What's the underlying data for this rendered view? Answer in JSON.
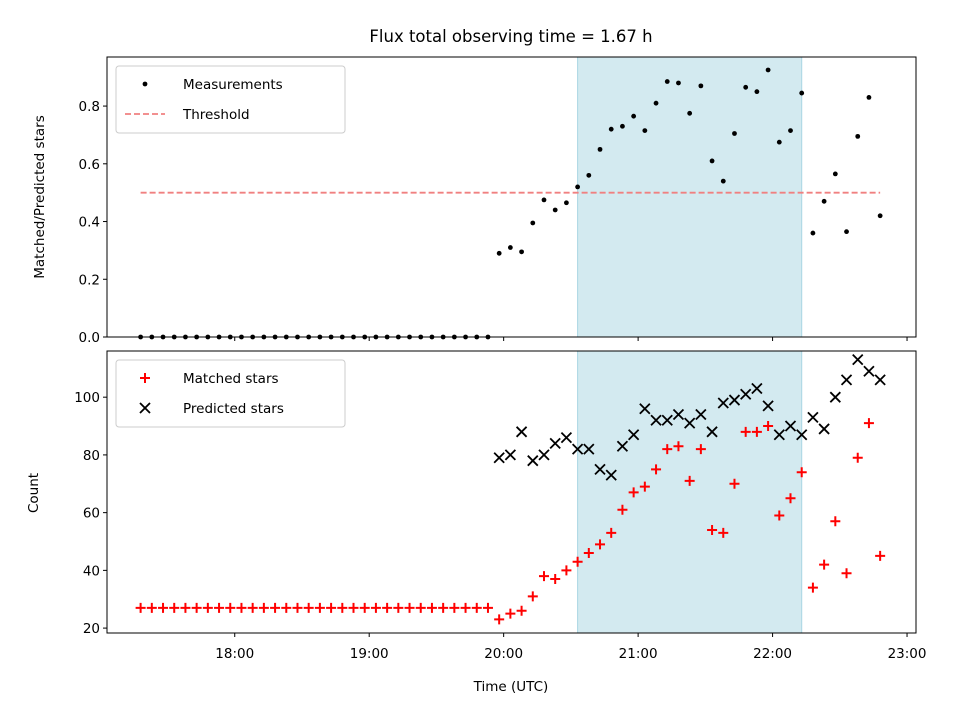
{
  "chart_data": [
    {
      "type": "scatter",
      "title": "Flux total observing time = 1.67 h",
      "xlabel": "",
      "ylabel": "Matched/Predicted stars",
      "ylim": [
        0,
        0.97
      ],
      "yticks": [
        0.0,
        0.2,
        0.4,
        0.6,
        0.8
      ],
      "ytick_labels": [
        "0.0",
        "0.2",
        "0.4",
        "0.6",
        "0.8"
      ],
      "xlim": [
        "17:03",
        "23:04"
      ],
      "legend_position": "top-left",
      "shaded_interval": [
        "20:33",
        "22:13"
      ],
      "shade_color": "#d3eaf0",
      "series": [
        {
          "name": "Measurements",
          "kind": "points",
          "color": "#000000",
          "x": [
            "17:18",
            "17:23",
            "17:28",
            "17:33",
            "17:38",
            "17:43",
            "17:48",
            "17:53",
            "17:58",
            "18:03",
            "18:08",
            "18:13",
            "18:18",
            "18:23",
            "18:28",
            "18:33",
            "18:38",
            "18:43",
            "18:48",
            "18:53",
            "18:58",
            "19:03",
            "19:08",
            "19:13",
            "19:18",
            "19:23",
            "19:28",
            "19:33",
            "19:38",
            "19:43",
            "19:48",
            "19:53",
            "19:58",
            "20:03",
            "20:08",
            "20:13",
            "20:18",
            "20:23",
            "20:28",
            "20:33",
            "20:38",
            "20:43",
            "20:48",
            "20:53",
            "20:58",
            "21:03",
            "21:08",
            "21:13",
            "21:18",
            "21:23",
            "21:28",
            "21:33",
            "21:38",
            "21:43",
            "21:48",
            "21:53",
            "21:58",
            "22:03",
            "22:08",
            "22:13",
            "22:18",
            "22:23",
            "22:28",
            "22:33",
            "22:38",
            "22:43",
            "22:48"
          ],
          "y": [
            0,
            0,
            0,
            0,
            0,
            0,
            0,
            0,
            0,
            0,
            0,
            0,
            0,
            0,
            0,
            0,
            0,
            0,
            0,
            0,
            0,
            0,
            0,
            0,
            0,
            0,
            0,
            0,
            0,
            0,
            0,
            0,
            0.29,
            0.31,
            0.295,
            0.395,
            0.475,
            0.44,
            0.465,
            0.52,
            0.56,
            0.65,
            0.72,
            0.73,
            0.765,
            0.715,
            0.81,
            0.885,
            0.88,
            0.775,
            0.87,
            0.61,
            0.54,
            0.705,
            0.865,
            0.85,
            0.925,
            0.675,
            0.715,
            0.845,
            0.36,
            0.47,
            0.565,
            0.365,
            0.695,
            0.83,
            0.42
          ]
        },
        {
          "name": "Threshold",
          "kind": "dashed-line",
          "color": "#f08080",
          "x": [
            "17:18",
            "22:48"
          ],
          "y": [
            0.5,
            0.5
          ]
        }
      ]
    },
    {
      "type": "scatter",
      "title": "",
      "xlabel": "Time (UTC)",
      "ylabel": "Count",
      "ylim": [
        18.3,
        116
      ],
      "yticks": [
        20,
        40,
        60,
        80,
        100
      ],
      "ytick_labels": [
        "20",
        "40",
        "60",
        "80",
        "100"
      ],
      "xlim": [
        "17:03",
        "23:04"
      ],
      "xticks": [
        "18:00",
        "19:00",
        "20:00",
        "21:00",
        "22:00",
        "23:00"
      ],
      "legend_position": "top-left",
      "shaded_interval": [
        "20:33",
        "22:13"
      ],
      "shade_color": "#d3eaf0",
      "series": [
        {
          "name": "Matched stars",
          "kind": "plus",
          "color": "#ff0000",
          "x": [
            "17:18",
            "17:23",
            "17:28",
            "17:33",
            "17:38",
            "17:43",
            "17:48",
            "17:53",
            "17:58",
            "18:03",
            "18:08",
            "18:13",
            "18:18",
            "18:23",
            "18:28",
            "18:33",
            "18:38",
            "18:43",
            "18:48",
            "18:53",
            "18:58",
            "19:03",
            "19:08",
            "19:13",
            "19:18",
            "19:23",
            "19:28",
            "19:33",
            "19:38",
            "19:43",
            "19:48",
            "19:53",
            "19:58",
            "20:03",
            "20:08",
            "20:13",
            "20:18",
            "20:23",
            "20:28",
            "20:33",
            "20:38",
            "20:43",
            "20:48",
            "20:53",
            "20:58",
            "21:03",
            "21:08",
            "21:13",
            "21:18",
            "21:23",
            "21:28",
            "21:33",
            "21:38",
            "21:43",
            "21:48",
            "21:53",
            "21:58",
            "22:03",
            "22:08",
            "22:13",
            "22:18",
            "22:23",
            "22:28",
            "22:33",
            "22:38",
            "22:43",
            "22:48"
          ],
          "y": [
            27,
            27,
            27,
            27,
            27,
            27,
            27,
            27,
            27,
            27,
            27,
            27,
            27,
            27,
            27,
            27,
            27,
            27,
            27,
            27,
            27,
            27,
            27,
            27,
            27,
            27,
            27,
            27,
            27,
            27,
            27,
            27,
            23,
            25,
            26,
            31,
            38,
            37,
            40,
            43,
            46,
            49,
            53,
            61,
            67,
            69,
            75,
            82,
            83,
            71,
            82,
            54,
            53,
            70,
            88,
            88,
            90,
            59,
            65,
            74,
            34,
            42,
            57,
            39,
            79,
            91,
            45
          ]
        },
        {
          "name": "Predicted stars",
          "kind": "x",
          "color": "#000000",
          "x": [
            "19:58",
            "20:03",
            "20:08",
            "20:13",
            "20:18",
            "20:23",
            "20:28",
            "20:33",
            "20:38",
            "20:43",
            "20:48",
            "20:53",
            "20:58",
            "21:03",
            "21:08",
            "21:13",
            "21:18",
            "21:23",
            "21:28",
            "21:33",
            "21:38",
            "21:43",
            "21:48",
            "21:53",
            "21:58",
            "22:03",
            "22:08",
            "22:13",
            "22:18",
            "22:23",
            "22:28",
            "22:33",
            "22:38",
            "22:43",
            "22:48"
          ],
          "y": [
            79,
            80,
            88,
            78,
            80,
            84,
            86,
            82,
            82,
            75,
            73,
            83,
            87,
            96,
            92,
            92,
            94,
            91,
            94,
            88,
            98,
            99,
            101,
            103,
            97,
            87,
            90,
            87,
            93,
            89,
            100,
            106,
            113,
            109,
            106
          ]
        }
      ]
    }
  ]
}
